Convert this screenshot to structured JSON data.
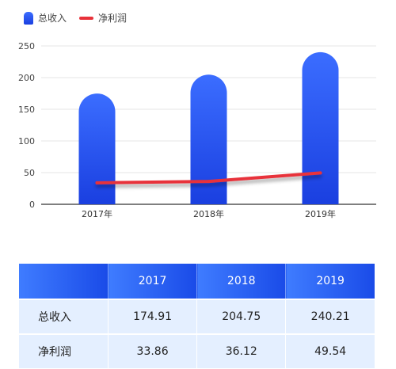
{
  "colors": {
    "bar_top": "#3b6dff",
    "bar_bottom": "#1a3fe0",
    "line": "#e8323a",
    "grid": "#e6e6e6",
    "axis": "#333333"
  },
  "chart_data": {
    "type": "bar",
    "categories": [
      "2017年",
      "2018年",
      "2019年"
    ],
    "series": [
      {
        "name": "总收入",
        "type": "bar",
        "values": [
          174.91,
          204.75,
          240.21
        ]
      },
      {
        "name": "净利润",
        "type": "line",
        "values": [
          33.86,
          36.12,
          49.54
        ]
      }
    ],
    "yticks": [
      "0",
      "50",
      "100",
      "150",
      "200",
      "250"
    ],
    "ylim": [
      0,
      250
    ],
    "grid": true,
    "legend": "top-left"
  },
  "table": {
    "headers": [
      "",
      "2017",
      "2018",
      "2019"
    ],
    "rows": [
      {
        "label": "总收入",
        "values": [
          "174.91",
          "204.75",
          "240.21"
        ]
      },
      {
        "label": "净利润",
        "values": [
          "33.86",
          "36.12",
          "49.54"
        ]
      }
    ]
  }
}
